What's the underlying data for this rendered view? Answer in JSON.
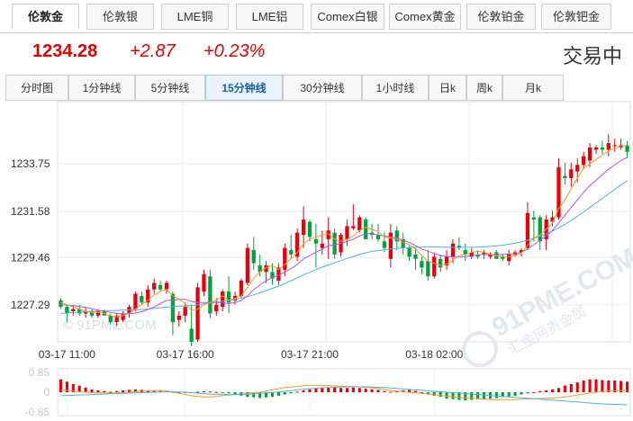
{
  "metal_tabs": [
    "伦敦金",
    "伦敦银",
    "LME铜",
    "LME铝",
    "Comex白银",
    "Comex黄金",
    "伦敦铂金",
    "伦敦钯金"
  ],
  "active_metal_tab": 0,
  "quote": {
    "price": "1234.28",
    "change": "+2.87",
    "change_pct": "+0.23%",
    "status": "交易中"
  },
  "period_tabs": [
    "分时图",
    "1分钟线",
    "5分钟线",
    "15分钟线",
    "30分钟线",
    "1小时线",
    "日k",
    "周k",
    "月k"
  ],
  "active_period_tab": 3,
  "watermarks": [
    "© 91PME.COM",
    "91PME.COM",
    "汇金网贵金属"
  ],
  "colors": {
    "up": "#e8000b",
    "down": "#00a23a",
    "ma5": "#f59a23",
    "ma10": "#b455e6",
    "ma20": "#49b4e6"
  },
  "chart_data": {
    "type": "candlestick",
    "price_axis": {
      "ticks": [
        "1227.29",
        "1229.46",
        "1231.58",
        "1233.75"
      ],
      "tick_values": [
        1227.29,
        1229.46,
        1231.58,
        1233.75
      ],
      "ylim": [
        1225.6,
        1236.6
      ]
    },
    "time_axis": {
      "labels": [
        "03-17 11:00",
        "03-17 16:00",
        "03-17 21:00",
        "03-18 02:00"
      ],
      "label_index": [
        1,
        20,
        40,
        60
      ]
    },
    "candles": [
      [
        1227.5,
        1227.6,
        1227.1,
        1227.2
      ],
      [
        1227.2,
        1227.3,
        1226.5,
        1226.9
      ],
      [
        1227.0,
        1227.3,
        1226.8,
        1227.1
      ],
      [
        1227.1,
        1227.3,
        1226.8,
        1226.9
      ],
      [
        1226.9,
        1227.2,
        1226.7,
        1227.0
      ],
      [
        1227.0,
        1227.1,
        1226.7,
        1226.8
      ],
      [
        1226.8,
        1227.1,
        1226.7,
        1227.0
      ],
      [
        1227.0,
        1227.1,
        1226.8,
        1226.8
      ],
      [
        1226.8,
        1226.9,
        1226.4,
        1226.5
      ],
      [
        1226.5,
        1226.9,
        1226.3,
        1226.8
      ],
      [
        1226.6,
        1227.0,
        1226.5,
        1226.9
      ],
      [
        1226.9,
        1227.3,
        1226.7,
        1227.2
      ],
      [
        1227.1,
        1227.9,
        1227.0,
        1227.8
      ],
      [
        1227.7,
        1227.9,
        1227.3,
        1227.4
      ],
      [
        1227.4,
        1228.2,
        1227.2,
        1228.0
      ],
      [
        1228.0,
        1228.5,
        1227.8,
        1228.3
      ],
      [
        1228.2,
        1228.4,
        1227.9,
        1228.0
      ],
      [
        1228.0,
        1228.4,
        1227.8,
        1228.3
      ],
      [
        1227.8,
        1227.9,
        1225.9,
        1226.5
      ],
      [
        1226.6,
        1227.0,
        1226.3,
        1226.8
      ],
      [
        1226.8,
        1227.4,
        1226.5,
        1227.2
      ],
      [
        1226.2,
        1227.3,
        1225.4,
        1225.6
      ],
      [
        1225.7,
        1228.3,
        1225.6,
        1228.1
      ],
      [
        1227.9,
        1228.9,
        1227.7,
        1228.7
      ],
      [
        1228.6,
        1228.9,
        1226.7,
        1226.9
      ],
      [
        1227.0,
        1227.6,
        1226.8,
        1227.3
      ],
      [
        1227.2,
        1228.0,
        1227.0,
        1227.9
      ],
      [
        1227.9,
        1228.6,
        1226.9,
        1227.4
      ],
      [
        1227.5,
        1227.9,
        1227.3,
        1227.7
      ],
      [
        1227.7,
        1228.5,
        1227.6,
        1228.4
      ],
      [
        1228.3,
        1230.1,
        1228.2,
        1229.9
      ],
      [
        1229.8,
        1230.4,
        1228.9,
        1229.2
      ],
      [
        1229.1,
        1229.6,
        1228.6,
        1228.8
      ],
      [
        1228.8,
        1229.3,
        1228.3,
        1229.1
      ],
      [
        1228.8,
        1229.2,
        1228.2,
        1228.5
      ],
      [
        1228.4,
        1229.2,
        1228.2,
        1229.0
      ],
      [
        1228.9,
        1230.1,
        1228.6,
        1229.9
      ],
      [
        1229.8,
        1230.5,
        1229.4,
        1229.6
      ],
      [
        1229.5,
        1230.8,
        1229.3,
        1230.6
      ],
      [
        1230.5,
        1231.8,
        1229.9,
        1231.2
      ],
      [
        1231.1,
        1231.2,
        1230.2,
        1230.4
      ],
      [
        1230.3,
        1231.0,
        1229.0,
        1230.1
      ],
      [
        1229.9,
        1230.7,
        1229.6,
        1230.1
      ],
      [
        1230.3,
        1231.3,
        1229.4,
        1230.7
      ],
      [
        1230.6,
        1230.8,
        1229.4,
        1229.6
      ],
      [
        1229.7,
        1230.6,
        1229.5,
        1230.5
      ],
      [
        1230.3,
        1231.2,
        1230.0,
        1230.9
      ],
      [
        1230.8,
        1231.9,
        1230.7,
        1230.9
      ],
      [
        1230.7,
        1231.4,
        1230.6,
        1231.3
      ],
      [
        1231.2,
        1231.3,
        1230.3,
        1230.3
      ],
      [
        1230.6,
        1231.0,
        1230.3,
        1230.5
      ],
      [
        1230.5,
        1231.0,
        1230.2,
        1230.3
      ],
      [
        1230.2,
        1230.6,
        1229.7,
        1229.9
      ],
      [
        1229.4,
        1231.0,
        1229.0,
        1230.6
      ],
      [
        1230.7,
        1230.9,
        1229.8,
        1230.2
      ],
      [
        1230.3,
        1230.6,
        1229.6,
        1229.9
      ],
      [
        1229.9,
        1230.0,
        1229.3,
        1229.5
      ],
      [
        1229.6,
        1229.9,
        1228.9,
        1229.4
      ],
      [
        1229.3,
        1229.5,
        1228.7,
        1229.0
      ],
      [
        1229.3,
        1229.8,
        1228.4,
        1228.6
      ],
      [
        1228.6,
        1229.7,
        1228.5,
        1229.5
      ],
      [
        1229.4,
        1229.6,
        1228.8,
        1229.0
      ],
      [
        1229.1,
        1229.8,
        1228.9,
        1229.5
      ],
      [
        1229.5,
        1230.3,
        1229.2,
        1230.1
      ],
      [
        1230.0,
        1230.4,
        1229.8,
        1229.9
      ],
      [
        1229.8,
        1230.1,
        1229.3,
        1229.6
      ],
      [
        1229.5,
        1229.9,
        1229.4,
        1229.7
      ],
      [
        1229.6,
        1229.8,
        1229.4,
        1229.5
      ],
      [
        1229.6,
        1229.8,
        1229.4,
        1229.7
      ],
      [
        1229.5,
        1229.7,
        1229.4,
        1229.6
      ],
      [
        1229.7,
        1229.8,
        1229.4,
        1229.4
      ],
      [
        1229.5,
        1229.6,
        1229.3,
        1229.4
      ],
      [
        1229.3,
        1229.8,
        1229.1,
        1229.6
      ],
      [
        1229.6,
        1229.8,
        1229.5,
        1229.7
      ],
      [
        1229.7,
        1229.9,
        1229.5,
        1229.8
      ],
      [
        1229.9,
        1232.0,
        1229.8,
        1231.5
      ],
      [
        1231.3,
        1231.6,
        1230.2,
        1231.2
      ],
      [
        1231.3,
        1231.4,
        1229.8,
        1230.2
      ],
      [
        1230.3,
        1231.4,
        1229.8,
        1231.2
      ],
      [
        1231.1,
        1231.6,
        1230.9,
        1231.3
      ],
      [
        1231.3,
        1234.0,
        1231.2,
        1233.6
      ],
      [
        1233.2,
        1233.8,
        1232.8,
        1233.1
      ],
      [
        1233.1,
        1233.8,
        1232.7,
        1233.5
      ],
      [
        1233.4,
        1234.0,
        1232.9,
        1233.7
      ],
      [
        1233.7,
        1234.3,
        1233.5,
        1234.1
      ],
      [
        1233.9,
        1234.7,
        1233.6,
        1234.5
      ],
      [
        1234.4,
        1234.6,
        1234.2,
        1234.5
      ],
      [
        1234.5,
        1234.8,
        1234.2,
        1234.4
      ],
      [
        1234.4,
        1235.1,
        1234.1,
        1234.7
      ],
      [
        1234.6,
        1234.9,
        1234.3,
        1234.6
      ],
      [
        1234.5,
        1234.9,
        1234.4,
        1234.6
      ],
      [
        1234.6,
        1234.8,
        1234.0,
        1234.3
      ]
    ],
    "ma": {
      "ma5": [
        1227.4,
        1227.3,
        1227.2,
        1227.1,
        1227.0,
        1226.95,
        1226.95,
        1226.9,
        1226.8,
        1226.75,
        1226.8,
        1226.9,
        1227.1,
        1227.3,
        1227.5,
        1227.75,
        1227.9,
        1228.0,
        1227.7,
        1227.55,
        1227.35,
        1227.05,
        1227.1,
        1227.3,
        1227.4,
        1227.5,
        1227.7,
        1227.5,
        1227.6,
        1227.7,
        1228.1,
        1228.5,
        1228.8,
        1229.0,
        1229.1,
        1228.9,
        1229.15,
        1229.4,
        1229.7,
        1230.1,
        1230.3,
        1230.4,
        1230.5,
        1230.55,
        1230.3,
        1230.2,
        1230.3,
        1230.45,
        1230.7,
        1230.85,
        1230.75,
        1230.65,
        1230.4,
        1230.35,
        1230.3,
        1230.15,
        1230.05,
        1229.85,
        1229.55,
        1229.3,
        1229.2,
        1229.1,
        1229.15,
        1229.35,
        1229.55,
        1229.6,
        1229.7,
        1229.75,
        1229.7,
        1229.6,
        1229.55,
        1229.5,
        1229.5,
        1229.55,
        1229.65,
        1230.0,
        1230.35,
        1230.5,
        1230.75,
        1231.05,
        1231.7,
        1232.1,
        1232.6,
        1233.1,
        1233.55,
        1233.75,
        1233.95,
        1234.15,
        1234.35,
        1234.45,
        1234.55,
        1234.6
      ],
      "ma10": [
        1227.3,
        1227.28,
        1227.26,
        1227.22,
        1227.18,
        1227.12,
        1227.05,
        1227.0,
        1226.95,
        1226.9,
        1226.88,
        1226.88,
        1226.92,
        1226.98,
        1227.08,
        1227.2,
        1227.35,
        1227.5,
        1227.5,
        1227.55,
        1227.55,
        1227.45,
        1227.4,
        1227.4,
        1227.4,
        1227.4,
        1227.4,
        1227.35,
        1227.4,
        1227.5,
        1227.7,
        1228.0,
        1228.2,
        1228.4,
        1228.55,
        1228.65,
        1228.8,
        1228.95,
        1229.15,
        1229.4,
        1229.55,
        1229.7,
        1229.85,
        1230.0,
        1230.05,
        1230.1,
        1230.2,
        1230.3,
        1230.45,
        1230.55,
        1230.55,
        1230.5,
        1230.45,
        1230.4,
        1230.35,
        1230.25,
        1230.15,
        1230.0,
        1229.85,
        1229.75,
        1229.65,
        1229.55,
        1229.5,
        1229.48,
        1229.48,
        1229.5,
        1229.55,
        1229.58,
        1229.6,
        1229.6,
        1229.6,
        1229.6,
        1229.62,
        1229.65,
        1229.7,
        1229.85,
        1230.05,
        1230.25,
        1230.45,
        1230.7,
        1231.05,
        1231.4,
        1231.75,
        1232.1,
        1232.45,
        1232.75,
        1233.0,
        1233.25,
        1233.5,
        1233.7,
        1233.9,
        1234.05
      ],
      "ma20": [
        1226.9,
        1226.92,
        1226.94,
        1226.96,
        1226.98,
        1227.0,
        1227.01,
        1227.02,
        1227.03,
        1227.04,
        1227.05,
        1227.06,
        1227.07,
        1227.08,
        1227.1,
        1227.13,
        1227.16,
        1227.19,
        1227.21,
        1227.23,
        1227.25,
        1227.27,
        1227.3,
        1227.34,
        1227.38,
        1227.42,
        1227.46,
        1227.5,
        1227.55,
        1227.6,
        1227.67,
        1227.75,
        1227.85,
        1227.95,
        1228.05,
        1228.15,
        1228.27,
        1228.4,
        1228.53,
        1228.66,
        1228.79,
        1228.91,
        1229.02,
        1229.12,
        1229.22,
        1229.32,
        1229.42,
        1229.51,
        1229.6,
        1229.68,
        1229.74,
        1229.78,
        1229.82,
        1229.85,
        1229.88,
        1229.9,
        1229.92,
        1229.93,
        1229.94,
        1229.95,
        1229.95,
        1229.94,
        1229.93,
        1229.93,
        1229.93,
        1229.93,
        1229.93,
        1229.94,
        1229.95,
        1229.97,
        1230.0,
        1230.03,
        1230.07,
        1230.12,
        1230.18,
        1230.25,
        1230.34,
        1230.44,
        1230.55,
        1230.67,
        1230.82,
        1230.98,
        1231.16,
        1231.35,
        1231.55,
        1231.75,
        1231.96,
        1232.17,
        1232.38,
        1232.58,
        1232.78,
        1232.97
      ]
    },
    "macd": {
      "ticks": [
        "0.85",
        "0",
        "-0.85"
      ],
      "tick_values": [
        0.85,
        0,
        -0.85
      ],
      "ylim": [
        -1.0,
        1.0
      ],
      "hist": [
        0.55,
        0.45,
        0.35,
        0.28,
        0.2,
        0.12,
        0.08,
        0.05,
        0.02,
        0.05,
        0.08,
        0.1,
        0.12,
        0.1,
        0.08,
        0.06,
        0.05,
        0.04,
        0.02,
        -0.02,
        -0.01,
        0.0,
        0.02,
        0.04,
        0.03,
        0.01,
        -0.02,
        -0.05,
        -0.1,
        -0.15,
        -0.2,
        -0.22,
        -0.25,
        -0.22,
        -0.2,
        -0.15,
        -0.1,
        -0.05,
        0.02,
        0.08,
        0.12,
        0.15,
        0.18,
        0.2,
        0.2,
        0.18,
        0.18,
        0.2,
        0.18,
        0.15,
        0.12,
        0.1,
        0.05,
        0.02,
        0.05,
        0.08,
        0.1,
        0.05,
        0.0,
        -0.1,
        -0.15,
        -0.2,
        -0.28,
        -0.3,
        -0.33,
        -0.35,
        -0.33,
        -0.3,
        -0.3,
        -0.28,
        -0.25,
        -0.2,
        -0.18,
        -0.15,
        -0.1,
        -0.05,
        0.0,
        0.05,
        0.08,
        0.12,
        0.18,
        0.28,
        0.35,
        0.42,
        0.5,
        0.55,
        0.55,
        0.52,
        0.5,
        0.5,
        0.48,
        0.45
      ],
      "dif": [
        0.1,
        0.08,
        0.05,
        0.02,
        0.0,
        -0.02,
        -0.03,
        -0.03,
        -0.04,
        -0.03,
        -0.02,
        0.0,
        0.02,
        0.04,
        0.06,
        0.07,
        0.08,
        0.06,
        0.0,
        -0.05,
        -0.1,
        -0.15,
        -0.18,
        -0.2,
        -0.2,
        -0.18,
        -0.15,
        -0.12,
        -0.1,
        -0.08,
        -0.05,
        -0.02,
        0.0,
        0.05,
        0.1,
        0.15,
        0.2,
        0.22,
        0.25,
        0.28,
        0.3,
        0.3,
        0.29,
        0.28,
        0.27,
        0.26,
        0.25,
        0.24,
        0.23,
        0.21,
        0.19,
        0.16,
        0.12,
        0.08,
        0.05,
        0.02,
        -0.01,
        -0.03,
        -0.05,
        -0.08,
        -0.11,
        -0.14,
        -0.17,
        -0.2,
        -0.22,
        -0.24,
        -0.26,
        -0.28,
        -0.3,
        -0.31,
        -0.32,
        -0.32,
        -0.32,
        -0.31,
        -0.3,
        -0.29,
        -0.28,
        -0.27,
        -0.26,
        -0.25,
        -0.23,
        -0.2,
        -0.16,
        -0.12,
        -0.08,
        -0.04,
        0.0,
        0.03,
        0.05,
        0.06,
        0.07,
        0.08
      ],
      "dea": [
        -0.15,
        -0.14,
        -0.13,
        -0.12,
        -0.11,
        -0.1,
        -0.09,
        -0.08,
        -0.07,
        -0.06,
        -0.05,
        -0.04,
        -0.03,
        -0.02,
        -0.01,
        0.0,
        0.01,
        0.02,
        0.02,
        0.01,
        0.0,
        -0.02,
        -0.04,
        -0.06,
        -0.08,
        -0.09,
        -0.1,
        -0.1,
        -0.1,
        -0.09,
        -0.08,
        -0.07,
        -0.05,
        -0.03,
        -0.01,
        0.01,
        0.04,
        0.07,
        0.1,
        0.13,
        0.15,
        0.17,
        0.19,
        0.2,
        0.21,
        0.22,
        0.23,
        0.23,
        0.23,
        0.23,
        0.22,
        0.21,
        0.2,
        0.18,
        0.16,
        0.14,
        0.12,
        0.1,
        0.08,
        0.06,
        0.04,
        0.02,
        0.0,
        -0.02,
        -0.04,
        -0.06,
        -0.08,
        -0.1,
        -0.12,
        -0.14,
        -0.16,
        -0.18,
        -0.2,
        -0.22,
        -0.24,
        -0.26,
        -0.28,
        -0.3,
        -0.32,
        -0.34,
        -0.36,
        -0.38,
        -0.4,
        -0.42,
        -0.44,
        -0.46,
        -0.48,
        -0.5,
        -0.51,
        -0.52,
        -0.53,
        -0.54
      ]
    }
  }
}
